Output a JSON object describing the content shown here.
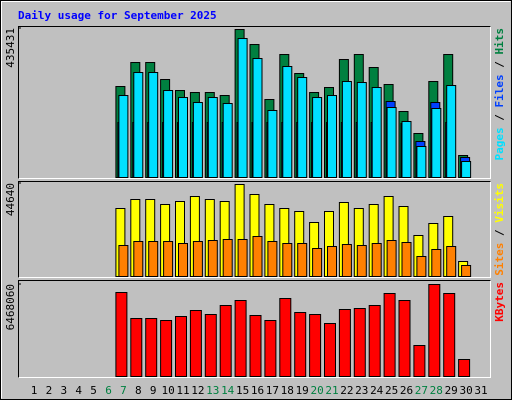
{
  "chart_data": {
    "type": "bar",
    "title": "Daily usage for September 2025",
    "categories": [
      "1",
      "2",
      "3",
      "4",
      "5",
      "6",
      "7",
      "8",
      "9",
      "10",
      "11",
      "12",
      "13",
      "14",
      "15",
      "16",
      "17",
      "18",
      "19",
      "20",
      "21",
      "22",
      "23",
      "24",
      "25",
      "26",
      "27",
      "28",
      "29",
      "30",
      "31"
    ],
    "category_colors": [
      "#000000",
      "#000000",
      "#000000",
      "#000000",
      "#000000",
      "#008040",
      "#008040",
      "#000000",
      "#000000",
      "#000000",
      "#000000",
      "#000000",
      "#008040",
      "#008040",
      "#000000",
      "#000000",
      "#000000",
      "#000000",
      "#000000",
      "#008040",
      "#008040",
      "#000000",
      "#000000",
      "#000000",
      "#000000",
      "#000000",
      "#008040",
      "#008040",
      "#000000",
      "#000000",
      "#000000"
    ],
    "legend_separator": " / ",
    "panels": [
      {
        "ylim": [
          0,
          435431
        ],
        "yticks": [
          435431
        ],
        "series": [
          {
            "name": "Hits",
            "color": "#008040",
            "values": [
              null,
              null,
              null,
              null,
              null,
              null,
              265902,
              336030,
              336030,
              286356,
              254214,
              248370,
              248370,
              239604,
              432456,
              388626,
              227916,
              359406,
              303888,
              248370,
              262980,
              344796,
              359406,
              321420,
              271746,
              192852,
              128568,
              280512,
              359406,
              64284,
              null
            ]
          },
          {
            "name": "Files",
            "color": "#0040ff",
            "values": [
              null,
              null,
              null,
              null,
              null,
              null,
              160710,
              160710,
              160710,
              160710,
              160710,
              160710,
              160710,
              160710,
              160710,
              160710,
              160710,
              160710,
              160710,
              160710,
              160710,
              160710,
              160710,
              160710,
              222072,
              157788,
              105192,
              219150,
              160710,
              58440,
              null
            ]
          },
          {
            "name": "Pages",
            "color": "#00e0ff",
            "values": [
              null,
              null,
              null,
              null,
              null,
              null,
              239604,
              306810,
              306810,
              254214,
              233760,
              219150,
              233760,
              216228,
              406158,
              347718,
              195774,
              324342,
              292200,
              233760,
              239604,
              280512,
              277590,
              262980,
              204540,
              163632,
              90582,
              201618,
              268824,
              46752,
              null
            ]
          }
        ]
      },
      {
        "ylim": [
          0,
          44640
        ],
        "yticks": [
          44640
        ],
        "series": [
          {
            "name": "Visits",
            "color": "#ffff00",
            "values": [
              null,
              null,
              null,
              null,
              null,
              null,
              32640,
              36960,
              36960,
              34560,
              36000,
              38400,
              36960,
              36000,
              44160,
              39360,
              34560,
              32640,
              31200,
              25920,
              31200,
              35520,
              32640,
              34560,
              38400,
              33600,
              19680,
              25440,
              28800,
              7200,
              null
            ]
          },
          {
            "name": "Sites",
            "color": "#ff8000",
            "values": [
              null,
              null,
              null,
              null,
              null,
              null,
              14880,
              16800,
              16800,
              16800,
              15840,
              16800,
              17280,
              17760,
              17760,
              19200,
              16800,
              15840,
              15840,
              13440,
              14400,
              15360,
              14880,
              15840,
              17280,
              16320,
              9600,
              12960,
              14400,
              5280,
              null
            ]
          }
        ]
      },
      {
        "ylim": [
          0,
          6468060
        ],
        "yticks": [
          6468060
        ],
        "series": [
          {
            "name": "KBytes",
            "color": "#ff0000",
            "values": [
              null,
              null,
              null,
              null,
              null,
              null,
              5905620,
              4077690,
              4077690,
              3937080,
              4218300,
              4640130,
              4358910,
              4991655,
              5343180,
              4288605,
              3937080,
              5483790,
              4499520,
              4358910,
              3726165,
              4710435,
              4780740,
              4991655,
              5835315,
              5343180,
              2179455,
              6468060,
              5835315,
              1195185,
              null
            ]
          }
        ]
      }
    ]
  }
}
